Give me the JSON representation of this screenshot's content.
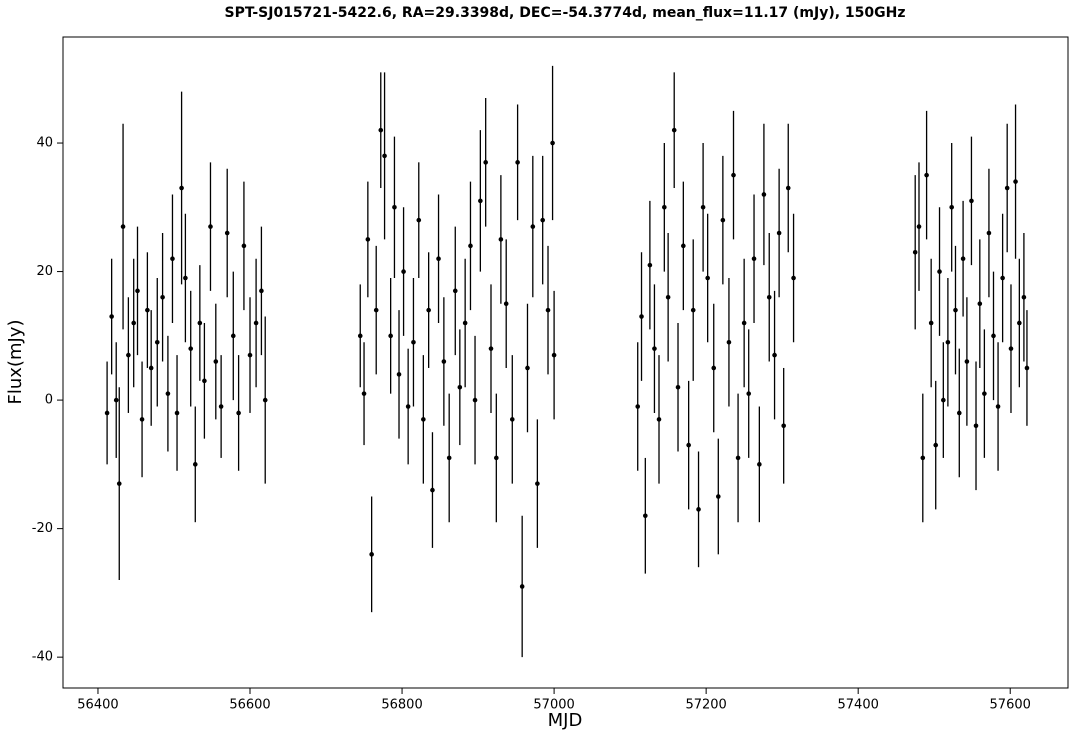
{
  "chart_data": {
    "type": "errorbar",
    "title": "SPT-SJ015721-5422.6, RA=29.3398d, DEC=-54.3774d, mean_flux=11.17 (mJy), 150GHz",
    "xlabel": "MJD",
    "ylabel": "Flux(mJy)",
    "xlim": [
      56354,
      57676
    ],
    "ylim": [
      -44.8,
      56.5
    ],
    "xticks": [
      56400,
      56600,
      56800,
      57000,
      57200,
      57400,
      57600
    ],
    "yticks": [
      -40,
      -20,
      0,
      20,
      40
    ],
    "grid": false,
    "color": "#000000",
    "x": [
      56412,
      56418,
      56424,
      56428,
      56433,
      56440,
      56447,
      56452,
      56458,
      56465,
      56470,
      56478,
      56485,
      56492,
      56498,
      56504,
      56510,
      56515,
      56522,
      56528,
      56534,
      56540,
      56548,
      56555,
      56562,
      56570,
      56578,
      56585,
      56592,
      56600,
      56608,
      56615,
      56620,
      56745,
      56750,
      56755,
      56760,
      56766,
      56772,
      56777,
      56785,
      56790,
      56796,
      56802,
      56808,
      56815,
      56822,
      56828,
      56835,
      56840,
      56848,
      56855,
      56862,
      56870,
      56876,
      56883,
      56890,
      56896,
      56903,
      56910,
      56917,
      56924,
      56930,
      56937,
      56945,
      56952,
      56958,
      56965,
      56972,
      56978,
      56985,
      56992,
      56998,
      57000,
      57110,
      57115,
      57120,
      57126,
      57132,
      57138,
      57145,
      57150,
      57158,
      57163,
      57170,
      57177,
      57183,
      57190,
      57196,
      57202,
      57210,
      57216,
      57222,
      57230,
      57236,
      57242,
      57250,
      57256,
      57263,
      57270,
      57276,
      57283,
      57290,
      57296,
      57302,
      57308,
      57315,
      57475,
      57480,
      57485,
      57490,
      57496,
      57502,
      57507,
      57512,
      57518,
      57523,
      57528,
      57533,
      57538,
      57543,
      57549,
      57555,
      57560,
      57566,
      57572,
      57578,
      57584,
      57590,
      57596,
      57601,
      57607,
      57612,
      57618,
      57622
    ],
    "values": [
      -2,
      13,
      0,
      -13,
      27,
      7,
      12,
      17,
      -3,
      14,
      5,
      9,
      16,
      1,
      22,
      -2,
      33,
      19,
      8,
      -10,
      12,
      3,
      27,
      6,
      -1,
      26,
      10,
      -2,
      24,
      7,
      12,
      17,
      0,
      10,
      1,
      25,
      -24,
      14,
      42,
      38,
      10,
      30,
      4,
      20,
      -1,
      9,
      28,
      -3,
      14,
      -14,
      22,
      6,
      -9,
      17,
      2,
      12,
      24,
      0,
      31,
      37,
      8,
      -9,
      25,
      15,
      -3,
      37,
      -29,
      5,
      27,
      -13,
      28,
      14,
      40,
      7,
      -1,
      13,
      -18,
      21,
      8,
      -3,
      30,
      16,
      42,
      2,
      24,
      -7,
      14,
      -17,
      30,
      19,
      5,
      -15,
      28,
      9,
      35,
      -9,
      12,
      1,
      22,
      -10,
      32,
      16,
      7,
      26,
      -4,
      33,
      19,
      23,
      27,
      -9,
      35,
      12,
      -7,
      20,
      0,
      9,
      30,
      14,
      -2,
      22,
      6,
      31,
      -4,
      15,
      1,
      26,
      10,
      -1,
      19,
      33,
      8,
      34,
      12,
      16,
      5
    ],
    "errors": [
      8,
      9,
      9,
      15,
      16,
      9,
      10,
      10,
      9,
      9,
      9,
      10,
      10,
      9,
      10,
      9,
      15,
      10,
      9,
      9,
      9,
      9,
      10,
      9,
      8,
      10,
      10,
      9,
      10,
      9,
      10,
      10,
      13,
      8,
      8,
      9,
      9,
      10,
      9,
      13,
      9,
      11,
      10,
      10,
      9,
      10,
      9,
      10,
      9,
      9,
      10,
      10,
      10,
      10,
      9,
      10,
      10,
      10,
      11,
      10,
      10,
      10,
      10,
      10,
      10,
      9,
      11,
      10,
      11,
      10,
      10,
      10,
      12,
      10,
      10,
      10,
      9,
      10,
      10,
      10,
      10,
      10,
      9,
      10,
      10,
      10,
      11,
      9,
      10,
      10,
      10,
      9,
      10,
      10,
      10,
      10,
      10,
      10,
      10,
      9,
      11,
      10,
      10,
      10,
      9,
      10,
      10,
      12,
      10,
      10,
      10,
      10,
      10,
      10,
      9,
      10,
      10,
      10,
      10,
      9,
      10,
      10,
      10,
      10,
      10,
      10,
      10,
      10,
      10,
      10,
      10,
      12,
      10,
      10,
      9
    ]
  }
}
